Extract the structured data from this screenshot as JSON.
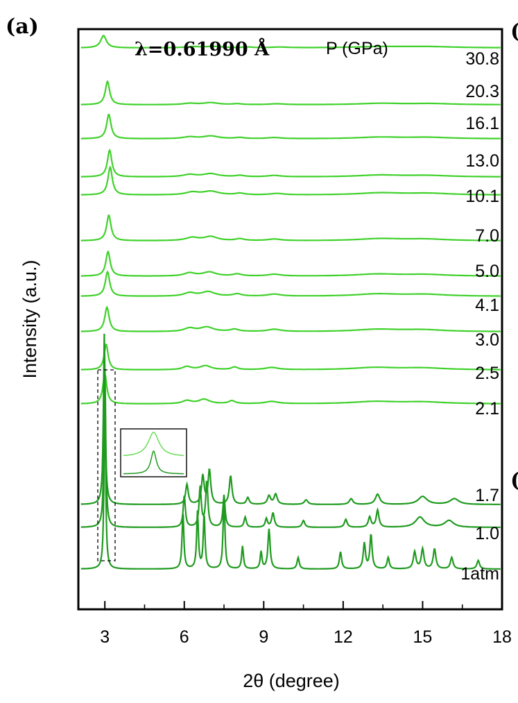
{
  "panel_label": "(a)",
  "annotations": {
    "wavelength": "λ=0.61990 Å",
    "pressure_header": "P (GPa)"
  },
  "colors": {
    "frame": "#000000",
    "high_pressure": "#3fd12a",
    "low_pressure": "#1f9a1f",
    "inset_top": "#66dd55",
    "inset_bottom": "#1f9a1f"
  },
  "chart_data": {
    "type": "line",
    "xlabel": "2θ (degree)",
    "ylabel": "Intensity (a.u.)",
    "xlim": [
      2,
      18
    ],
    "xticks": [
      3,
      6,
      9,
      12,
      15,
      18
    ],
    "xtick_labels": [
      "3",
      "6",
      "9",
      "12",
      "15",
      "18"
    ],
    "y_ticks_shown": false,
    "legend": "none",
    "grid": false,
    "series": [
      {
        "name": "30.8",
        "kind": "high",
        "peaks": [
          [
            2.95,
            0.55,
            0.13
          ],
          [
            6.3,
            0.05,
            0.3
          ],
          [
            7.1,
            0.06,
            0.4
          ],
          [
            8.4,
            0.03,
            0.2
          ],
          [
            9.6,
            0.03,
            0.4
          ],
          [
            13.4,
            0.05,
            1.2
          ],
          [
            15.2,
            0.05,
            1.2
          ]
        ]
      },
      {
        "name": "20.3",
        "kind": "high",
        "peaks": [
          [
            3.1,
            1.05,
            0.1
          ],
          [
            6.2,
            0.06,
            0.3
          ],
          [
            7.0,
            0.09,
            0.35
          ],
          [
            8.0,
            0.04,
            0.2
          ],
          [
            9.5,
            0.04,
            0.35
          ],
          [
            13.4,
            0.06,
            1.0
          ],
          [
            15.3,
            0.05,
            1.0
          ]
        ]
      },
      {
        "name": "16.1",
        "kind": "high",
        "peaks": [
          [
            3.15,
            1.1,
            0.1
          ],
          [
            6.2,
            0.08,
            0.3
          ],
          [
            7.0,
            0.12,
            0.35
          ],
          [
            8.1,
            0.05,
            0.2
          ],
          [
            9.4,
            0.05,
            0.3
          ],
          [
            13.4,
            0.07,
            1.0
          ],
          [
            15.2,
            0.06,
            1.0
          ]
        ]
      },
      {
        "name": "13.0",
        "kind": "high",
        "peaks": [
          [
            3.18,
            1.2,
            0.1
          ],
          [
            6.2,
            0.1,
            0.3
          ],
          [
            7.0,
            0.14,
            0.35
          ],
          [
            8.1,
            0.06,
            0.2
          ],
          [
            9.4,
            0.06,
            0.3
          ],
          [
            13.4,
            0.08,
            1.0
          ],
          [
            15.2,
            0.06,
            1.0
          ]
        ]
      },
      {
        "name": "10.1",
        "kind": "high",
        "peaks": [
          [
            3.2,
            1.25,
            0.1
          ],
          [
            6.3,
            0.12,
            0.3
          ],
          [
            7.0,
            0.16,
            0.35
          ],
          [
            8.1,
            0.07,
            0.2
          ],
          [
            9.5,
            0.06,
            0.3
          ],
          [
            13.4,
            0.09,
            1.0
          ],
          [
            15.2,
            0.07,
            1.0
          ]
        ]
      },
      {
        "name": "7.0",
        "kind": "high",
        "peaks": [
          [
            3.15,
            1.15,
            0.1
          ],
          [
            6.3,
            0.14,
            0.3
          ],
          [
            7.0,
            0.18,
            0.3
          ],
          [
            8.1,
            0.08,
            0.2
          ],
          [
            9.4,
            0.07,
            0.3
          ],
          [
            13.4,
            0.09,
            1.0
          ],
          [
            15.1,
            0.07,
            1.0
          ]
        ]
      },
      {
        "name": "5.0",
        "kind": "high",
        "peaks": [
          [
            3.12,
            1.1,
            0.1
          ],
          [
            6.2,
            0.14,
            0.25
          ],
          [
            6.95,
            0.18,
            0.3
          ],
          [
            8.0,
            0.09,
            0.2
          ],
          [
            9.4,
            0.08,
            0.3
          ],
          [
            13.3,
            0.09,
            1.0
          ],
          [
            15.1,
            0.07,
            1.0
          ]
        ]
      },
      {
        "name": "4.1",
        "kind": "high",
        "peaks": [
          [
            3.1,
            1.1,
            0.1
          ],
          [
            6.2,
            0.15,
            0.25
          ],
          [
            6.9,
            0.2,
            0.3
          ],
          [
            8.0,
            0.1,
            0.2
          ],
          [
            9.4,
            0.09,
            0.3
          ],
          [
            13.3,
            0.1,
            1.0
          ],
          [
            15.1,
            0.08,
            1.0
          ]
        ]
      },
      {
        "name": "3.0",
        "kind": "high",
        "peaks": [
          [
            3.08,
            1.1,
            0.1
          ],
          [
            6.2,
            0.15,
            0.25
          ],
          [
            6.85,
            0.2,
            0.3
          ],
          [
            7.9,
            0.1,
            0.2
          ],
          [
            9.4,
            0.1,
            0.3
          ],
          [
            13.3,
            0.1,
            1.0
          ],
          [
            15.0,
            0.08,
            1.0
          ]
        ]
      },
      {
        "name": "2.5",
        "kind": "high",
        "peaks": [
          [
            3.05,
            1.15,
            0.09
          ],
          [
            6.1,
            0.14,
            0.2
          ],
          [
            6.8,
            0.18,
            0.25
          ],
          [
            7.9,
            0.12,
            0.15
          ],
          [
            9.3,
            0.1,
            0.3
          ],
          [
            13.2,
            0.1,
            1.0
          ],
          [
            15.0,
            0.08,
            1.0
          ]
        ]
      },
      {
        "name": "2.1",
        "kind": "high",
        "peaks": [
          [
            3.0,
            1.35,
            0.09
          ],
          [
            6.1,
            0.14,
            0.2
          ],
          [
            6.75,
            0.2,
            0.25
          ],
          [
            7.8,
            0.13,
            0.15
          ],
          [
            9.3,
            0.1,
            0.3
          ],
          [
            13.2,
            0.1,
            1.0
          ],
          [
            15.0,
            0.08,
            1.0
          ]
        ]
      },
      {
        "name": "1.7",
        "kind": "low",
        "peaks": [
          [
            2.98,
            3.0,
            0.04
          ],
          [
            6.1,
            0.35,
            0.06
          ],
          [
            6.7,
            0.5,
            0.06
          ],
          [
            6.95,
            0.6,
            0.06
          ],
          [
            7.75,
            0.5,
            0.06
          ],
          [
            8.4,
            0.12,
            0.06
          ],
          [
            9.2,
            0.15,
            0.07
          ],
          [
            9.45,
            0.18,
            0.07
          ],
          [
            10.6,
            0.08,
            0.08
          ],
          [
            12.3,
            0.1,
            0.08
          ],
          [
            13.3,
            0.18,
            0.1
          ],
          [
            15.0,
            0.14,
            0.2
          ],
          [
            16.2,
            0.1,
            0.2
          ]
        ]
      },
      {
        "name": "1.0",
        "kind": "low",
        "peaks": [
          [
            3.0,
            2.8,
            0.04
          ],
          [
            6.0,
            0.55,
            0.05
          ],
          [
            6.6,
            0.7,
            0.05
          ],
          [
            6.85,
            0.8,
            0.05
          ],
          [
            7.5,
            0.55,
            0.05
          ],
          [
            8.3,
            0.18,
            0.05
          ],
          [
            9.1,
            0.15,
            0.05
          ],
          [
            9.35,
            0.25,
            0.06
          ],
          [
            10.5,
            0.12,
            0.06
          ],
          [
            12.1,
            0.14,
            0.06
          ],
          [
            13.0,
            0.18,
            0.06
          ],
          [
            13.3,
            0.3,
            0.06
          ],
          [
            14.9,
            0.18,
            0.2
          ],
          [
            16.0,
            0.12,
            0.2
          ]
        ]
      },
      {
        "name": "1atm",
        "kind": "low",
        "peaks": [
          [
            3.0,
            3.2,
            0.035
          ],
          [
            5.95,
            1.0,
            0.04
          ],
          [
            6.5,
            1.0,
            0.04
          ],
          [
            6.75,
            0.95,
            0.04
          ],
          [
            7.5,
            1.3,
            0.04
          ],
          [
            8.2,
            0.4,
            0.04
          ],
          [
            8.9,
            0.3,
            0.04
          ],
          [
            9.2,
            0.7,
            0.05
          ],
          [
            10.3,
            0.2,
            0.05
          ],
          [
            11.9,
            0.3,
            0.05
          ],
          [
            12.8,
            0.45,
            0.05
          ],
          [
            13.05,
            0.6,
            0.05
          ],
          [
            13.7,
            0.2,
            0.05
          ],
          [
            14.7,
            0.3,
            0.06
          ],
          [
            15.0,
            0.35,
            0.06
          ],
          [
            15.45,
            0.35,
            0.06
          ],
          [
            16.1,
            0.2,
            0.06
          ],
          [
            17.1,
            0.15,
            0.06
          ]
        ]
      }
    ]
  }
}
